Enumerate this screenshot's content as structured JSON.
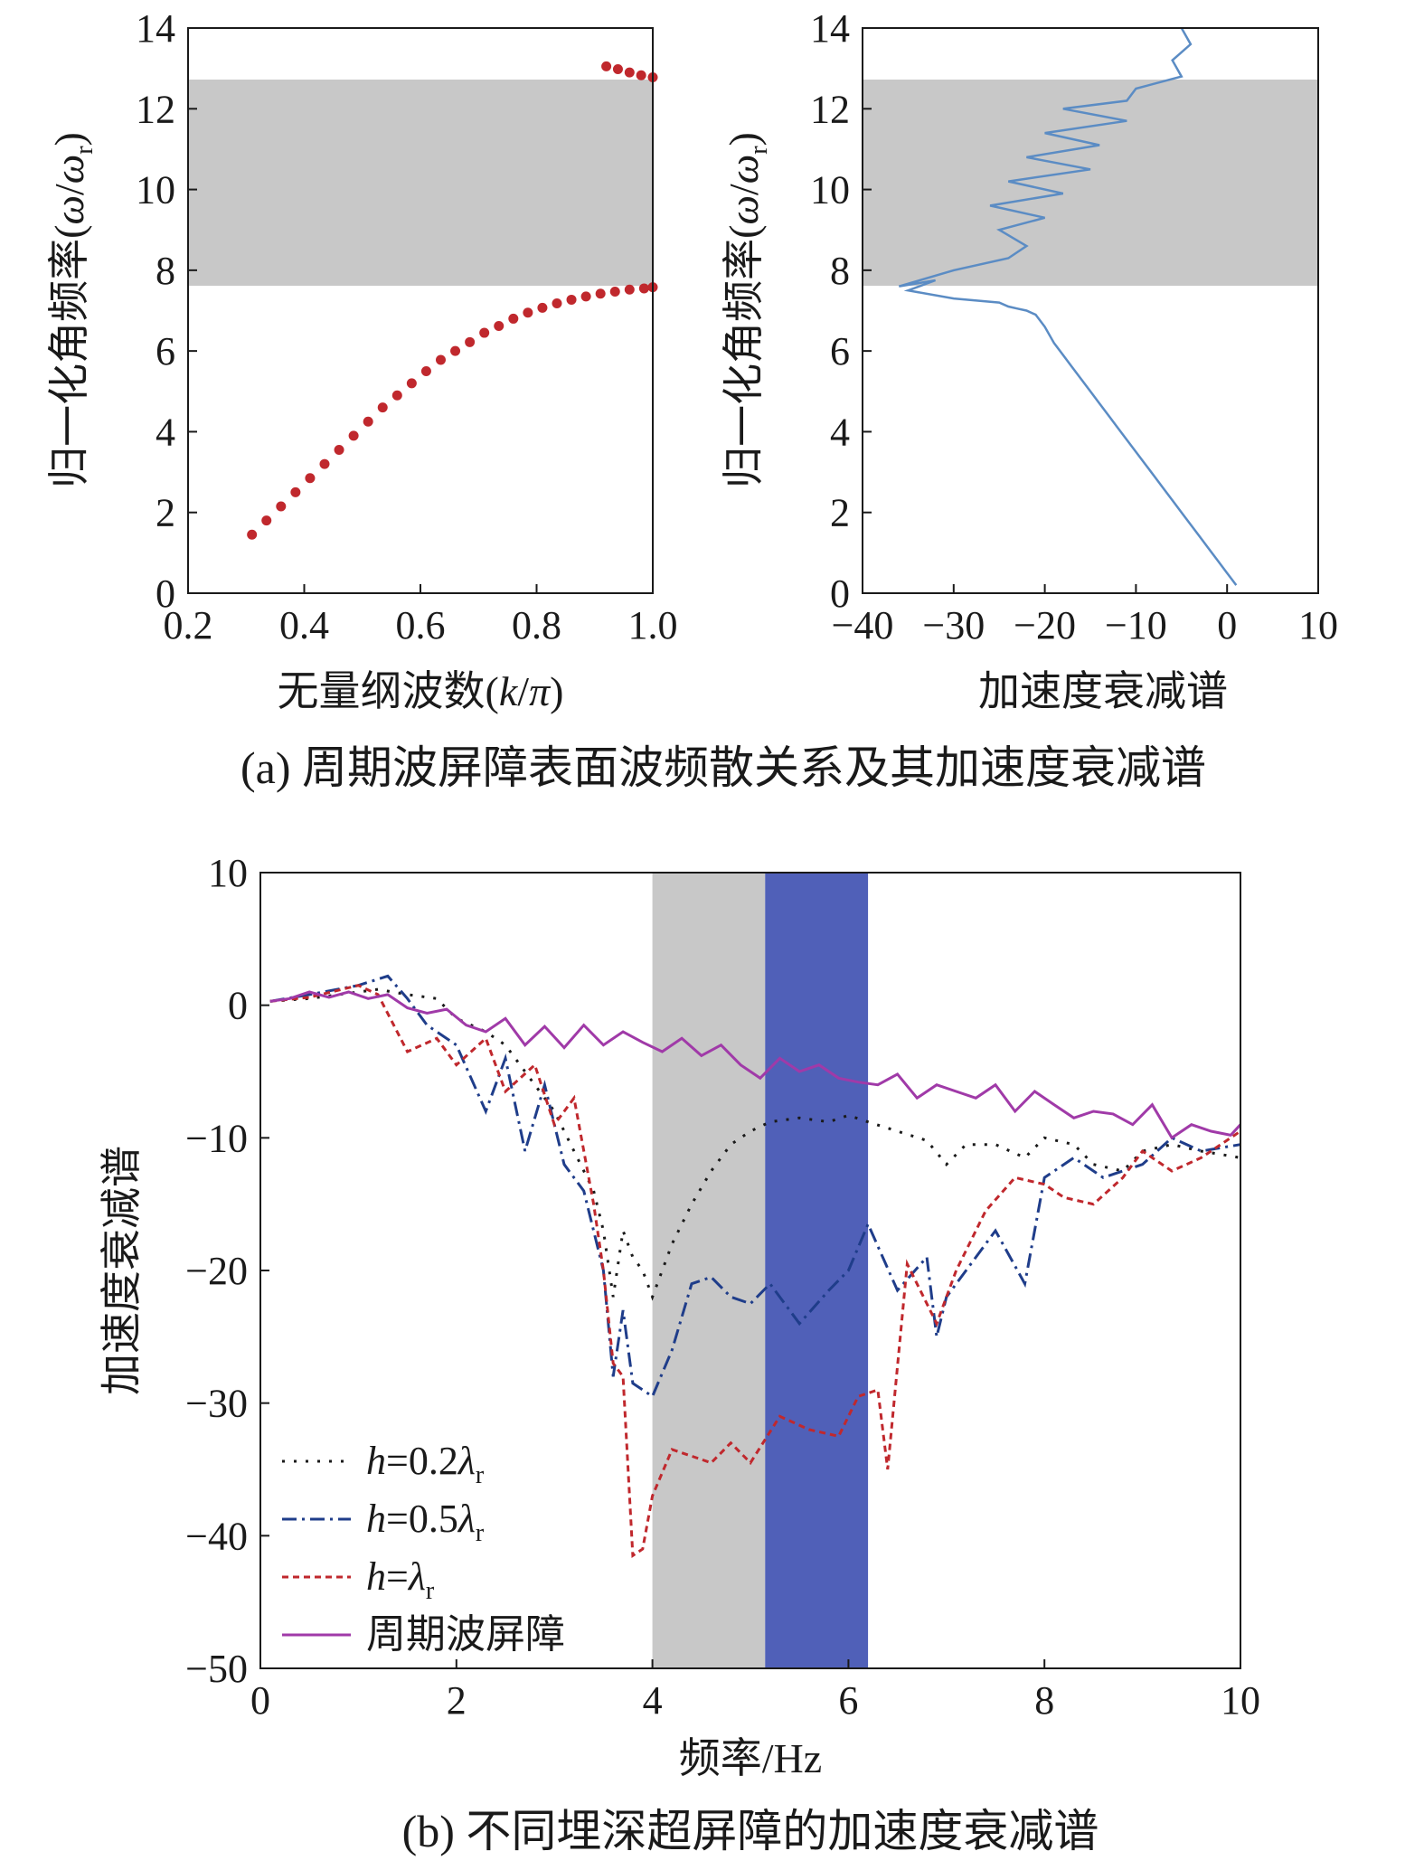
{
  "colors": {
    "band_gray": "#c8c8c8",
    "band_blue": "#5060b8",
    "dispersion_points": "#c0282d",
    "attenuation_line": "#5b8cc4",
    "h02": "#1a1a1a",
    "h05": "#1f3d8a",
    "h1": "#c0282d",
    "periodic": "#a03aa8"
  },
  "captions": {
    "a": "(a) 周期波屏障表面波频散关系及其加速度衰减谱",
    "b": "(b) 不同埋深超屏障的加速度衰减谱"
  },
  "chart_data": [
    {
      "id": "a-left",
      "type": "scatter",
      "xlabel": "无量纲波数(k/π)",
      "ylabel": "归一化角频率(ω/ω_r)",
      "xlim": [
        0.2,
        1.0
      ],
      "ylim": [
        0,
        14
      ],
      "xticks": [
        "0.2",
        "0.4",
        "0.6",
        "0.8",
        "1.0"
      ],
      "yticks": [
        "0",
        "2",
        "4",
        "6",
        "8",
        "10",
        "12",
        "14"
      ],
      "band_gap": [
        7.6,
        12.7
      ],
      "series": [
        {
          "x": [
            0.31,
            0.335,
            0.36,
            0.385,
            0.41,
            0.435,
            0.46,
            0.485,
            0.51,
            0.535,
            0.56,
            0.585,
            0.61,
            0.635,
            0.66,
            0.685,
            0.71,
            0.735,
            0.76,
            0.785,
            0.81,
            0.835,
            0.86,
            0.885,
            0.91,
            0.935,
            0.96,
            0.985,
            1.0
          ],
          "y": [
            1.45,
            1.8,
            2.15,
            2.5,
            2.85,
            3.2,
            3.55,
            3.9,
            4.25,
            4.6,
            4.9,
            5.2,
            5.5,
            5.78,
            6.0,
            6.22,
            6.45,
            6.62,
            6.8,
            6.95,
            7.07,
            7.18,
            7.27,
            7.35,
            7.42,
            7.47,
            7.52,
            7.55,
            7.58
          ]
        },
        {
          "x": [
            0.92,
            0.94,
            0.96,
            0.98,
            1.0
          ],
          "y": [
            13.05,
            12.98,
            12.9,
            12.83,
            12.78
          ]
        }
      ]
    },
    {
      "id": "a-right",
      "type": "line",
      "xlabel": "加速度衰减谱",
      "ylabel": "归一化角频率(ω/ω_r)",
      "xlim": [
        -40,
        10
      ],
      "ylim": [
        0,
        14
      ],
      "xticks": [
        "−40",
        "−30",
        "−20",
        "−10",
        "0",
        "10"
      ],
      "yticks": [
        "0",
        "2",
        "4",
        "6",
        "8",
        "10",
        "12",
        "14"
      ],
      "band_gap": [
        7.6,
        12.7
      ],
      "series": [
        {
          "x": [
            1,
            0,
            -1,
            -2,
            -3,
            -4,
            -5,
            -6,
            -7,
            -8,
            -9,
            -10,
            -11,
            -12,
            -13,
            -14,
            -15,
            -16,
            -17,
            -18,
            -19,
            -20,
            -21,
            -22,
            -23,
            -24,
            -25,
            -30,
            -35,
            -32,
            -36,
            -30,
            -24,
            -22,
            -25,
            -20,
            -26,
            -18,
            -24,
            -15,
            -22,
            -14,
            -20,
            -11,
            -18,
            -11,
            -10,
            -5,
            -6,
            -4,
            -5
          ],
          "y": [
            0.2,
            0.5,
            0.8,
            1.1,
            1.4,
            1.7,
            2.0,
            2.3,
            2.6,
            2.9,
            3.2,
            3.5,
            3.8,
            4.1,
            4.4,
            4.7,
            5.0,
            5.3,
            5.6,
            5.9,
            6.2,
            6.6,
            6.9,
            7.0,
            7.05,
            7.1,
            7.2,
            7.3,
            7.5,
            7.75,
            7.6,
            8.0,
            8.3,
            8.6,
            9.0,
            9.3,
            9.6,
            9.9,
            10.2,
            10.5,
            10.8,
            11.1,
            11.4,
            11.7,
            12.0,
            12.2,
            12.5,
            12.8,
            13.2,
            13.6,
            14.0
          ]
        }
      ]
    },
    {
      "id": "b",
      "type": "line",
      "xlabel": "频率/Hz",
      "ylabel": "加速度衰减谱",
      "xlim": [
        0,
        10
      ],
      "ylim": [
        -50,
        10
      ],
      "xticks": [
        "0",
        "2",
        "4",
        "6",
        "8",
        "10"
      ],
      "yticks": [
        "−50",
        "−40",
        "−30",
        "−20",
        "−10",
        "0",
        "10"
      ],
      "gray_band": [
        4.0,
        5.15
      ],
      "blue_band": [
        5.15,
        6.2
      ],
      "series": [
        {
          "key": "h02",
          "x": [
            0.1,
            0.5,
            1.0,
            1.2,
            1.5,
            1.8,
            2.0,
            2.3,
            2.5,
            2.8,
            3.0,
            3.2,
            3.4,
            3.5,
            3.6,
            3.7,
            3.8,
            3.9,
            4.0,
            4.2,
            4.4,
            4.6,
            4.8,
            5.0,
            5.2,
            5.5,
            5.8,
            6.0,
            6.2,
            6.5,
            6.8,
            7.0,
            7.2,
            7.5,
            7.8,
            8.0,
            8.3,
            8.5,
            8.8,
            9.0,
            9.3,
            9.6,
            10.0
          ],
          "y": [
            0.3,
            0.5,
            1.0,
            1.2,
            0.8,
            0.5,
            -1.0,
            -2.0,
            -3.0,
            -6.0,
            -8.0,
            -11.0,
            -14.0,
            -17.0,
            -22.0,
            -17.0,
            -19.0,
            -20.0,
            -22.0,
            -18.0,
            -15.0,
            -12.5,
            -10.5,
            -9.5,
            -8.8,
            -8.5,
            -8.8,
            -8.3,
            -8.8,
            -9.5,
            -10.2,
            -12.0,
            -10.5,
            -10.5,
            -11.5,
            -10.0,
            -10.5,
            -12.0,
            -12.5,
            -11.0,
            -10.5,
            -11.0,
            -11.5
          ]
        },
        {
          "key": "h05",
          "x": [
            0.1,
            0.5,
            1.0,
            1.3,
            1.5,
            1.7,
            2.0,
            2.3,
            2.5,
            2.7,
            2.9,
            3.1,
            3.3,
            3.5,
            3.6,
            3.7,
            3.8,
            4.0,
            4.2,
            4.4,
            4.6,
            4.8,
            5.0,
            5.2,
            5.5,
            5.8,
            6.0,
            6.2,
            6.5,
            6.8,
            6.9,
            7.0,
            7.2,
            7.5,
            7.8,
            8.0,
            8.3,
            8.6,
            9.0,
            9.3,
            9.6,
            10.0
          ],
          "y": [
            0.3,
            0.8,
            1.5,
            2.2,
            0.5,
            -1.5,
            -3.0,
            -8.0,
            -4.0,
            -11.0,
            -6.0,
            -12.0,
            -14.0,
            -20.0,
            -28.0,
            -23.0,
            -28.5,
            -29.5,
            -26.0,
            -21.0,
            -20.5,
            -22.0,
            -22.5,
            -21.0,
            -24.0,
            -21.5,
            -20.0,
            -16.5,
            -21.5,
            -19.0,
            -25.0,
            -22.0,
            -20.0,
            -17.0,
            -21.0,
            -13.0,
            -11.5,
            -13.0,
            -12.0,
            -10.0,
            -11.0,
            -10.5
          ]
        },
        {
          "key": "h1",
          "x": [
            0.1,
            0.5,
            1.0,
            1.2,
            1.5,
            1.8,
            2.0,
            2.3,
            2.5,
            2.8,
            3.0,
            3.2,
            3.4,
            3.5,
            3.6,
            3.7,
            3.8,
            3.9,
            4.0,
            4.2,
            4.4,
            4.6,
            4.8,
            5.0,
            5.3,
            5.6,
            5.9,
            6.1,
            6.3,
            6.4,
            6.6,
            6.9,
            7.1,
            7.4,
            7.7,
            8.0,
            8.2,
            8.5,
            8.8,
            9.0,
            9.3,
            9.6,
            10.0
          ],
          "y": [
            0.3,
            0.6,
            1.5,
            0.8,
            -3.5,
            -2.5,
            -4.5,
            -2.5,
            -6.5,
            -4.5,
            -9.0,
            -7.0,
            -15.0,
            -20.0,
            -27.0,
            -28.0,
            -41.5,
            -41.0,
            -37.0,
            -33.5,
            -34.0,
            -34.5,
            -33.0,
            -34.5,
            -31.0,
            -32.0,
            -32.5,
            -29.5,
            -29.0,
            -35.0,
            -19.5,
            -24.0,
            -20.0,
            -15.5,
            -13.0,
            -13.5,
            -14.5,
            -15.0,
            -13.0,
            -11.0,
            -12.5,
            -11.5,
            -9.5
          ]
        },
        {
          "key": "periodic",
          "x": [
            0.1,
            0.3,
            0.5,
            0.7,
            0.9,
            1.1,
            1.3,
            1.5,
            1.7,
            1.9,
            2.1,
            2.3,
            2.5,
            2.7,
            2.9,
            3.1,
            3.3,
            3.5,
            3.7,
            3.9,
            4.1,
            4.3,
            4.5,
            4.7,
            4.9,
            5.1,
            5.3,
            5.5,
            5.7,
            5.9,
            6.1,
            6.3,
            6.5,
            6.7,
            6.9,
            7.1,
            7.3,
            7.5,
            7.7,
            7.9,
            8.1,
            8.3,
            8.5,
            8.7,
            8.9,
            9.1,
            9.3,
            9.5,
            9.7,
            9.9,
            10.0
          ],
          "y": [
            0.3,
            0.5,
            1.0,
            0.6,
            1.0,
            0.5,
            0.8,
            -0.2,
            -0.6,
            -0.3,
            -1.5,
            -2.0,
            -1.0,
            -3.0,
            -1.6,
            -3.2,
            -1.5,
            -3.0,
            -2.0,
            -2.8,
            -3.5,
            -2.5,
            -3.8,
            -3.0,
            -4.5,
            -5.5,
            -4.0,
            -5.0,
            -4.5,
            -5.5,
            -5.8,
            -6.0,
            -5.2,
            -7.0,
            -6.0,
            -6.5,
            -7.0,
            -6.0,
            -8.0,
            -6.5,
            -7.5,
            -8.5,
            -8.0,
            -8.2,
            -9.0,
            -7.5,
            -10.0,
            -9.0,
            -9.5,
            -9.8,
            -9.0
          ]
        }
      ],
      "legend": [
        {
          "key": "h02",
          "prefix": "h",
          "eq": "=0.2",
          "lambda": "λ",
          "sub": "r"
        },
        {
          "key": "h05",
          "prefix": "h",
          "eq": "=0.5",
          "lambda": "λ",
          "sub": "r"
        },
        {
          "key": "h1",
          "prefix": "h",
          "eq": "=",
          "lambda": "λ",
          "sub": "r"
        },
        {
          "key": "periodic",
          "label": "周期波屏障"
        }
      ]
    }
  ]
}
